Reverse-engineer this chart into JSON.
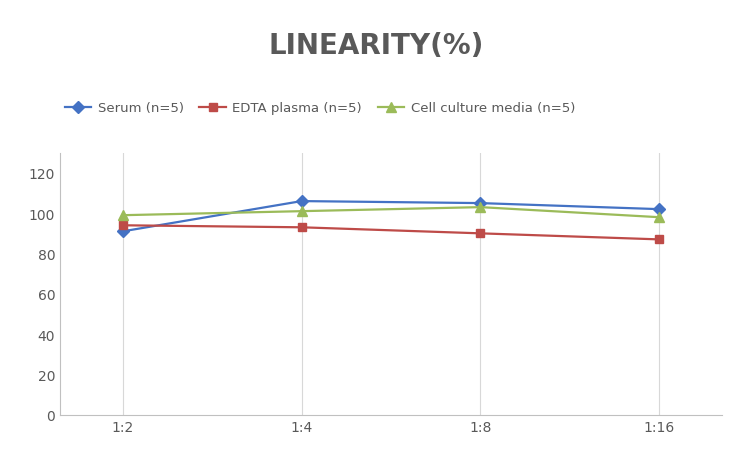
{
  "title": "LINEARITY(%)",
  "x_labels": [
    "1:2",
    "1:4",
    "1:8",
    "1:16"
  ],
  "series": [
    {
      "name": "Serum (n=5)",
      "values": [
        91,
        106,
        105,
        102
      ],
      "color": "#4472C4",
      "marker": "D",
      "markersize": 6,
      "linewidth": 1.6
    },
    {
      "name": "EDTA plasma (n=5)",
      "values": [
        94,
        93,
        90,
        87
      ],
      "color": "#BE4B48",
      "marker": "s",
      "markersize": 6,
      "linewidth": 1.6
    },
    {
      "name": "Cell culture media (n=5)",
      "values": [
        99,
        101,
        103,
        98
      ],
      "color": "#9BBB59",
      "marker": "^",
      "markersize": 7,
      "linewidth": 1.6
    }
  ],
  "ylim": [
    0,
    130
  ],
  "yticks": [
    0,
    20,
    40,
    60,
    80,
    100,
    120
  ],
  "background_color": "#ffffff",
  "grid_color": "#d8d8d8",
  "title_fontsize": 20,
  "title_color": "#595959",
  "legend_fontsize": 9.5,
  "tick_fontsize": 10,
  "tick_color": "#595959",
  "figsize": [
    7.52,
    4.52
  ],
  "dpi": 100
}
